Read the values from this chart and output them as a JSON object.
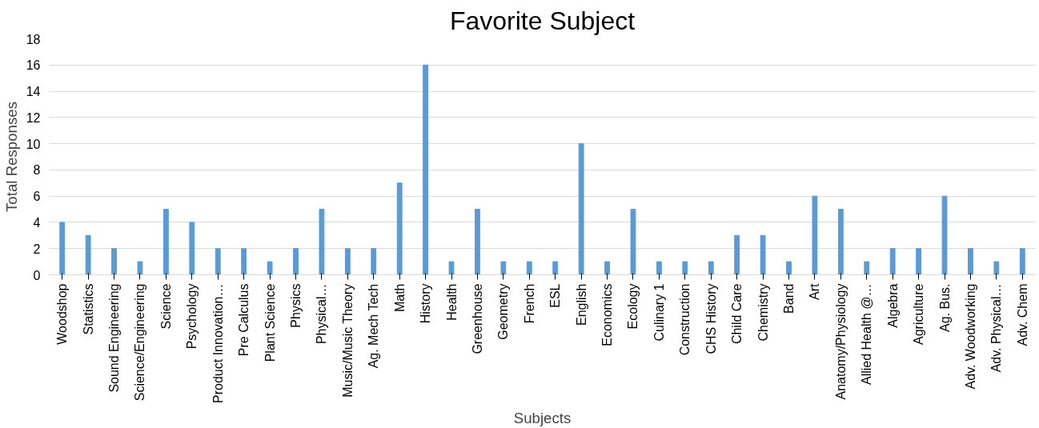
{
  "chart_data": {
    "type": "bar",
    "title": "Favorite Subject",
    "xlabel": "Subjects",
    "ylabel": "Total Responses",
    "categories": [
      "Woodshop",
      "Statistics",
      "Sound Engineering",
      "Science/Engineering",
      "Science",
      "Psychology",
      "Product Innovation…",
      "Pre Calculus",
      "Plant Science",
      "Physics",
      "Physical…",
      "Music/Music Theory",
      "Ag. Mech Tech",
      "Math",
      "History",
      "Health",
      "Greenhouse",
      "Geometry",
      "French",
      "ESL",
      "English",
      "Economics",
      "Ecology",
      "Culinary 1",
      "Construction",
      "CHS History",
      "Child Care",
      "Chemistry",
      "Band",
      "Art",
      "Anatomy/Physiology",
      "Allied Health @…",
      "Algebra",
      "Agriculture",
      "Ag. Bus.",
      "Adv. Woodworking",
      "Adv. Physical…",
      "Adv. Chem"
    ],
    "values": [
      4,
      3,
      2,
      1,
      5,
      4,
      2,
      2,
      1,
      2,
      5,
      2,
      2,
      7,
      16,
      1,
      5,
      1,
      1,
      1,
      10,
      1,
      5,
      1,
      1,
      1,
      3,
      3,
      1,
      6,
      5,
      1,
      2,
      2,
      6,
      2,
      1,
      2
    ],
    "color": "#5b9bd5",
    "ylim": [
      0,
      18
    ],
    "yticks": [
      0,
      2,
      4,
      6,
      8,
      10,
      12,
      14,
      16,
      18
    ],
    "grid": "y"
  }
}
